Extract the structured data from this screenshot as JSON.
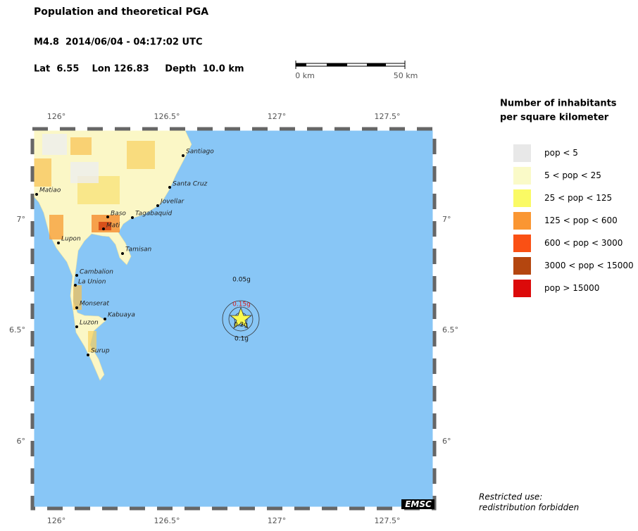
{
  "header": {
    "title": "Population and theoretical PGA",
    "event": "M4.8  2014/06/04 - 04:17:02 UTC",
    "location": "Lat  6.55    Lon 126.83     Depth  10.0 km"
  },
  "scale": {
    "start": "0 km",
    "end": "50 km"
  },
  "axes": {
    "lon": [
      "126°",
      "126.5°",
      "127°",
      "127.5°"
    ],
    "lat": [
      "7°",
      "6.5°",
      "6°"
    ]
  },
  "towns": [
    "Santiago",
    "Santa Cruz",
    "Jovellar",
    "Tagabaquid",
    "Baso",
    "Mati",
    "Matiao",
    "Lupon",
    "Tamisan",
    "Cambalion",
    "La Union",
    "Monserat",
    "Kabuaya",
    "Luzon",
    "Surup"
  ],
  "pga_labels": [
    "0.05g",
    "0.15g",
    "0.2g",
    "0.1g"
  ],
  "badge": "EMSC",
  "legend": {
    "title": [
      "Number of inhabitants",
      "per square kilometer"
    ],
    "items": [
      {
        "label": "pop < 5",
        "color": "#e8e8e8"
      },
      {
        "label": "5 < pop < 25",
        "color": "#fafac8"
      },
      {
        "label": "25 < pop < 125",
        "color": "#fafa64"
      },
      {
        "label": "125 < pop < 600",
        "color": "#fa9632"
      },
      {
        "label": "600 < pop < 3000",
        "color": "#fa5014"
      },
      {
        "label": "3000 < pop < 15000",
        "color": "#b4460f"
      },
      {
        "label": "pop > 15000",
        "color": "#dc0a0a"
      }
    ]
  },
  "notice": [
    "Restricted use:",
    "redistribution forbidden"
  ]
}
